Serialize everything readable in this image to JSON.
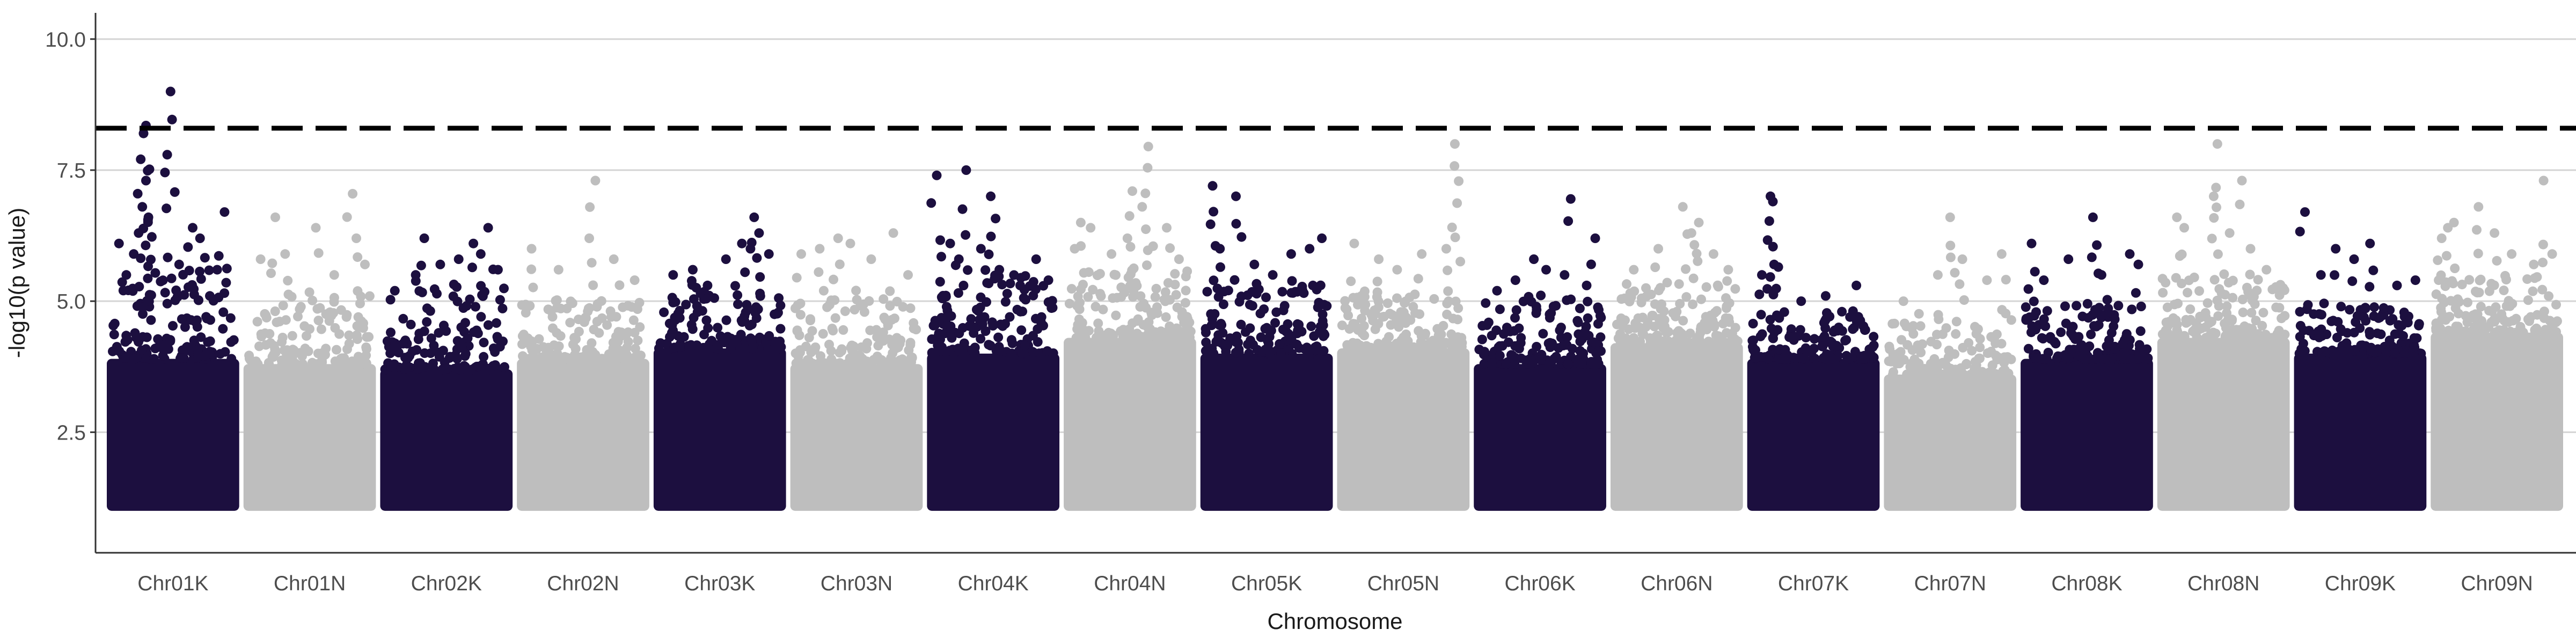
{
  "chart_data": {
    "type": "scatter",
    "subtype": "manhattan",
    "title": "",
    "xlabel": "Chromosome",
    "ylabel": "-log10(p value)",
    "ylim": [
      0.2,
      10.5
    ],
    "yticks": [
      2.5,
      5.0,
      7.5,
      10.0
    ],
    "ytick_labels": [
      "2.5",
      "5.0",
      "7.5",
      "10.0"
    ],
    "grid": "horizontal major",
    "threshold": {
      "value": 8.3,
      "style": "dashed",
      "color": "#000000"
    },
    "point_floor": 1.0,
    "colors": {
      "odd": "#1c0f3f",
      "even": "#bebebe",
      "grid": "#d4d4d4",
      "axis": "#333333"
    },
    "categories": [
      "Chr01K",
      "Chr01N",
      "Chr02K",
      "Chr02N",
      "Chr03K",
      "Chr03N",
      "Chr04K",
      "Chr04N",
      "Chr05K",
      "Chr05N",
      "Chr06K",
      "Chr06N",
      "Chr07K",
      "Chr07N",
      "Chr08K",
      "Chr08N",
      "Chr09K",
      "Chr09N"
    ],
    "series": [
      {
        "chromosome": "Chr01K",
        "color_group": "odd",
        "band_top": 3.9,
        "ridge_max": 5.6,
        "peaks": [
          [
            0.06,
            6.1
          ],
          [
            0.12,
            5.5
          ],
          [
            0.18,
            5.9
          ],
          [
            0.22,
            6.3
          ],
          [
            0.25,
            6.8
          ],
          [
            0.28,
            7.3
          ],
          [
            0.3,
            6.6
          ],
          [
            0.26,
            8.2
          ],
          [
            0.28,
            8.35
          ],
          [
            0.48,
            9.0
          ],
          [
            0.55,
            5.7
          ],
          [
            0.66,
            6.4
          ],
          [
            0.72,
            6.2
          ],
          [
            0.8,
            5.1
          ],
          [
            0.86,
            5.6
          ],
          [
            0.92,
            6.7
          ]
        ]
      },
      {
        "chromosome": "Chr01N",
        "color_group": "even",
        "band_top": 3.8,
        "ridge_max": 5.2,
        "peaks": [
          [
            0.1,
            5.8
          ],
          [
            0.22,
            6.6
          ],
          [
            0.3,
            5.9
          ],
          [
            0.55,
            6.4
          ],
          [
            0.7,
            5.5
          ],
          [
            0.85,
            7.05
          ],
          [
            0.88,
            6.2
          ],
          [
            0.95,
            5.7
          ]
        ]
      },
      {
        "chromosome": "Chr02K",
        "color_group": "odd",
        "band_top": 3.7,
        "ridge_max": 5.4,
        "peaks": [
          [
            0.08,
            5.2
          ],
          [
            0.25,
            5.5
          ],
          [
            0.32,
            6.2
          ],
          [
            0.45,
            5.7
          ],
          [
            0.6,
            5.8
          ],
          [
            0.72,
            6.1
          ],
          [
            0.78,
            5.9
          ],
          [
            0.84,
            6.4
          ],
          [
            0.92,
            5.6
          ]
        ]
      },
      {
        "chromosome": "Chr02N",
        "color_group": "even",
        "band_top": 3.9,
        "ridge_max": 5.1,
        "peaks": [
          [
            0.08,
            6.0
          ],
          [
            0.3,
            5.6
          ],
          [
            0.55,
            6.2
          ],
          [
            0.6,
            7.3
          ],
          [
            0.75,
            5.8
          ],
          [
            0.92,
            5.4
          ]
        ]
      },
      {
        "chromosome": "Chr03K",
        "color_group": "odd",
        "band_top": 4.1,
        "ridge_max": 5.4,
        "peaks": [
          [
            0.12,
            5.5
          ],
          [
            0.28,
            5.6
          ],
          [
            0.4,
            5.3
          ],
          [
            0.55,
            5.8
          ],
          [
            0.68,
            6.1
          ],
          [
            0.75,
            6.0
          ],
          [
            0.78,
            6.6
          ],
          [
            0.82,
            6.3
          ],
          [
            0.9,
            5.9
          ]
        ]
      },
      {
        "chromosome": "Chr03N",
        "color_group": "even",
        "band_top": 3.8,
        "ridge_max": 5.1,
        "peaks": [
          [
            0.05,
            5.9
          ],
          [
            0.2,
            6.0
          ],
          [
            0.35,
            6.2
          ],
          [
            0.45,
            6.1
          ],
          [
            0.62,
            5.8
          ],
          [
            0.8,
            6.3
          ],
          [
            0.92,
            5.5
          ]
        ]
      },
      {
        "chromosome": "Chr04K",
        "color_group": "odd",
        "band_top": 4.0,
        "ridge_max": 5.5,
        "peaks": [
          [
            0.04,
            7.4
          ],
          [
            0.15,
            6.1
          ],
          [
            0.22,
            5.8
          ],
          [
            0.28,
            7.5
          ],
          [
            0.4,
            6.0
          ],
          [
            0.48,
            7.0
          ],
          [
            0.55,
            5.6
          ],
          [
            0.72,
            5.3
          ],
          [
            0.85,
            5.8
          ],
          [
            0.95,
            5.4
          ]
        ]
      },
      {
        "chromosome": "Chr04N",
        "color_group": "even",
        "band_top": 4.3,
        "ridge_max": 5.6,
        "peaks": [
          [
            0.05,
            6.0
          ],
          [
            0.1,
            6.5
          ],
          [
            0.18,
            6.4
          ],
          [
            0.35,
            5.9
          ],
          [
            0.48,
            6.2
          ],
          [
            0.52,
            7.1
          ],
          [
            0.6,
            6.8
          ],
          [
            0.65,
            7.95
          ],
          [
            0.8,
            6.4
          ],
          [
            0.9,
            5.8
          ]
        ]
      },
      {
        "chromosome": "Chr05K",
        "color_group": "odd",
        "band_top": 4.0,
        "ridge_max": 5.3,
        "peaks": [
          [
            0.06,
            7.2
          ],
          [
            0.12,
            6.0
          ],
          [
            0.25,
            7.0
          ],
          [
            0.4,
            5.7
          ],
          [
            0.55,
            5.5
          ],
          [
            0.7,
            5.9
          ],
          [
            0.85,
            6.0
          ],
          [
            0.95,
            6.2
          ]
        ]
      },
      {
        "chromosome": "Chr05N",
        "color_group": "even",
        "band_top": 4.1,
        "ridge_max": 5.2,
        "peaks": [
          [
            0.1,
            6.1
          ],
          [
            0.3,
            5.8
          ],
          [
            0.45,
            5.6
          ],
          [
            0.65,
            5.9
          ],
          [
            0.85,
            6.0
          ],
          [
            0.92,
            8.0
          ]
        ]
      },
      {
        "chromosome": "Chr06K",
        "color_group": "odd",
        "band_top": 3.8,
        "ridge_max": 5.0,
        "peaks": [
          [
            0.15,
            5.2
          ],
          [
            0.3,
            5.4
          ],
          [
            0.45,
            5.8
          ],
          [
            0.55,
            5.6
          ],
          [
            0.7,
            5.5
          ],
          [
            0.75,
            6.95
          ],
          [
            0.88,
            5.3
          ],
          [
            0.95,
            6.2
          ]
        ]
      },
      {
        "chromosome": "Chr06N",
        "color_group": "even",
        "band_top": 4.2,
        "ridge_max": 5.4,
        "peaks": [
          [
            0.15,
            5.6
          ],
          [
            0.35,
            6.0
          ],
          [
            0.55,
            6.8
          ],
          [
            0.62,
            6.3
          ],
          [
            0.68,
            6.5
          ],
          [
            0.8,
            5.9
          ],
          [
            0.92,
            5.6
          ]
        ]
      },
      {
        "chromosome": "Chr07K",
        "color_group": "odd",
        "band_top": 3.9,
        "ridge_max": 4.8,
        "peaks": [
          [
            0.08,
            5.5
          ],
          [
            0.15,
            7.0
          ],
          [
            0.17,
            6.9
          ],
          [
            0.18,
            5.7
          ],
          [
            0.4,
            5.0
          ],
          [
            0.6,
            5.1
          ],
          [
            0.85,
            5.3
          ]
        ]
      },
      {
        "chromosome": "Chr07N",
        "color_group": "even",
        "band_top": 3.6,
        "ridge_max": 4.8,
        "peaks": [
          [
            0.12,
            5.0
          ],
          [
            0.4,
            5.5
          ],
          [
            0.5,
            6.6
          ],
          [
            0.6,
            5.8
          ],
          [
            0.8,
            5.4
          ],
          [
            0.92,
            5.9
          ]
        ]
      },
      {
        "chromosome": "Chr08K",
        "color_group": "odd",
        "band_top": 3.9,
        "ridge_max": 5.0,
        "peaks": [
          [
            0.05,
            6.1
          ],
          [
            0.15,
            5.4
          ],
          [
            0.35,
            5.8
          ],
          [
            0.55,
            6.6
          ],
          [
            0.62,
            5.5
          ],
          [
            0.85,
            5.9
          ],
          [
            0.92,
            5.7
          ]
        ]
      },
      {
        "chromosome": "Chr08N",
        "color_group": "even",
        "band_top": 4.3,
        "ridge_max": 5.5,
        "peaks": [
          [
            0.12,
            6.6
          ],
          [
            0.18,
            6.4
          ],
          [
            0.42,
            7.0
          ],
          [
            0.45,
            8.0
          ],
          [
            0.55,
            6.3
          ],
          [
            0.65,
            7.3
          ],
          [
            0.72,
            6.0
          ],
          [
            0.85,
            5.6
          ]
        ]
      },
      {
        "chromosome": "Chr09K",
        "color_group": "odd",
        "band_top": 4.0,
        "ridge_max": 4.9,
        "peaks": [
          [
            0.05,
            6.7
          ],
          [
            0.18,
            5.5
          ],
          [
            0.3,
            6.0
          ],
          [
            0.45,
            5.8
          ],
          [
            0.58,
            6.1
          ],
          [
            0.8,
            5.3
          ],
          [
            0.95,
            5.4
          ]
        ]
      },
      {
        "chromosome": "Chr09N",
        "color_group": "even",
        "band_top": 4.4,
        "ridge_max": 5.5,
        "peaks": [
          [
            0.05,
            6.2
          ],
          [
            0.1,
            6.4
          ],
          [
            0.15,
            6.5
          ],
          [
            0.35,
            6.8
          ],
          [
            0.48,
            6.3
          ],
          [
            0.62,
            5.9
          ],
          [
            0.8,
            5.7
          ],
          [
            0.88,
            7.3
          ],
          [
            0.95,
            5.9
          ]
        ]
      }
    ]
  }
}
